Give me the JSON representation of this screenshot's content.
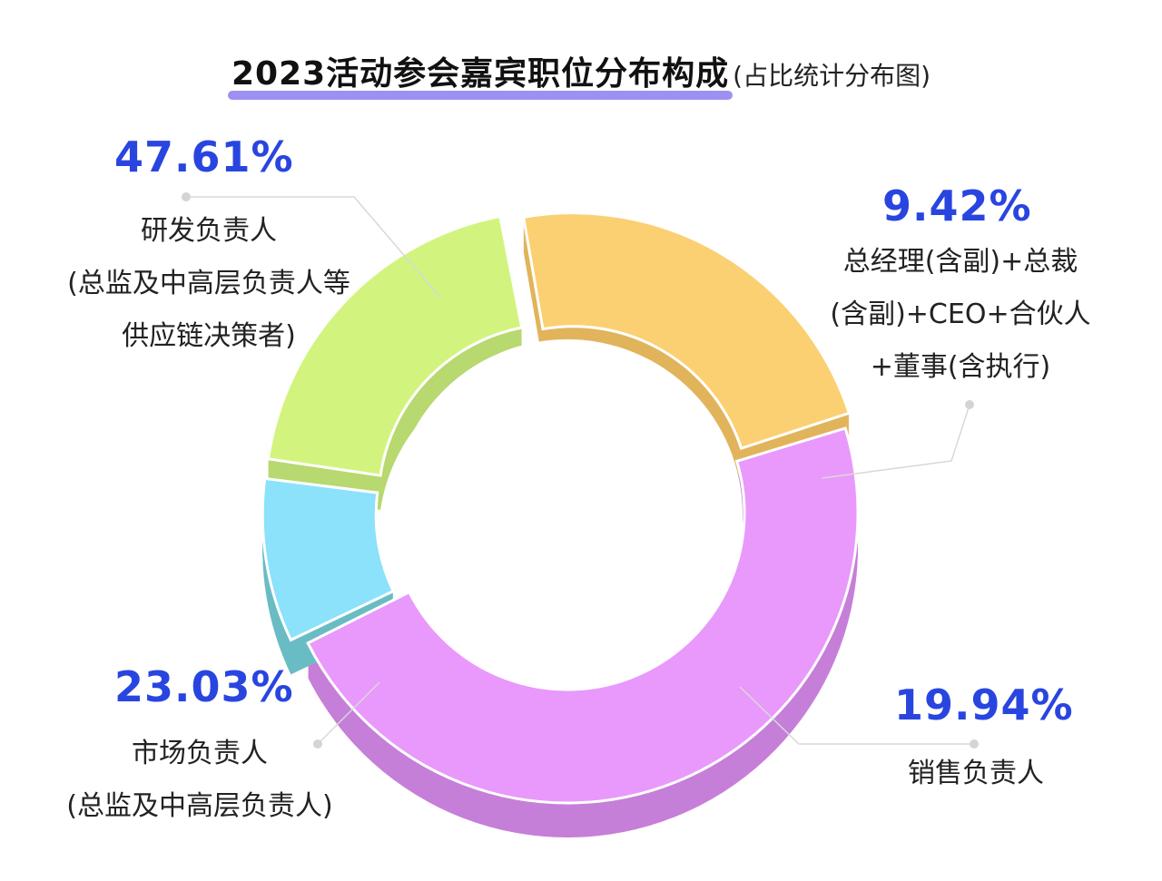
{
  "title": {
    "main": "2023活动参会嘉宾职位分布构成",
    "sub": "(占比统计分布图)"
  },
  "chart_data": {
    "type": "pie",
    "style": "3d-donut",
    "values": [
      47.61,
      9.42,
      19.94,
      23.03
    ],
    "value_labels": [
      "47.61%",
      "9.42%",
      "19.94%",
      "23.03%"
    ],
    "labels": [
      [
        "研发负责人",
        "(总监及中高层负责人等",
        "供应链决策者)"
      ],
      [
        "总经理(含副)+总裁",
        "(含副)+CEO+合伙人",
        "+董事(含执行)"
      ],
      [
        "销售负责人"
      ],
      [
        "市场负责人",
        "(总监及中高层负责人)"
      ]
    ],
    "colors": [
      "#e899fb",
      "#8be2fa",
      "#d2f47e",
      "#fbd072"
    ],
    "side_colors": [
      "#c67fd8",
      "#6abcc4",
      "#b8d870",
      "#e1b45c"
    ]
  }
}
